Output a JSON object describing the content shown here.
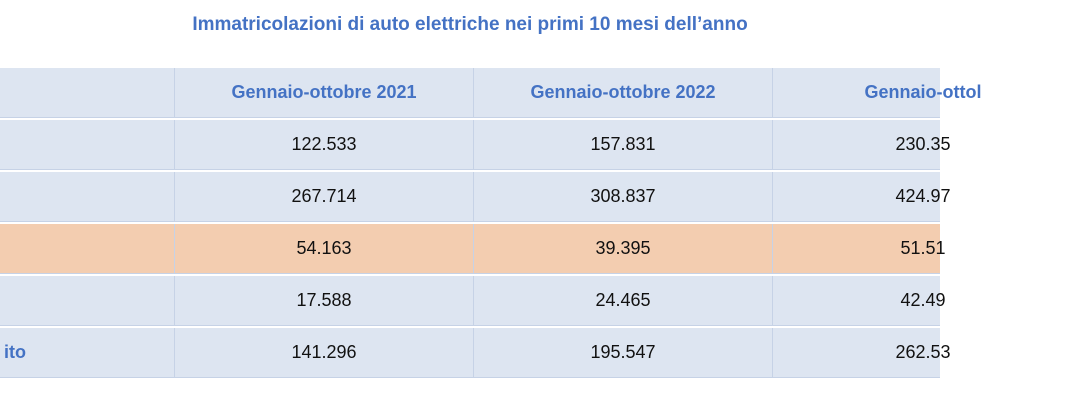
{
  "chart_data": {
    "type": "table",
    "title": "Immatricolazioni di auto elettriche nei primi 10 mesi dell’anno",
    "columns": [
      "",
      "Gennaio-ottobre 2021",
      "Gennaio-ottobre 2022",
      "Gennaio-ottol"
    ],
    "rows": [
      {
        "label": "",
        "values": [
          "122.533",
          "157.831",
          "230.35"
        ],
        "highlight": false
      },
      {
        "label": "",
        "values": [
          "267.714",
          "308.837",
          "424.97"
        ],
        "highlight": false
      },
      {
        "label": "",
        "values": [
          "54.163",
          "39.395",
          "51.51"
        ],
        "highlight": true
      },
      {
        "label": "",
        "values": [
          "17.588",
          "24.465",
          "42.49"
        ],
        "highlight": false
      },
      {
        "label": "ito",
        "values": [
          "141.296",
          "195.547",
          "262.53"
        ],
        "highlight": false
      }
    ],
    "colors": {
      "header_text": "#4472c4",
      "row_background": "#dde5f1",
      "highlight_background": "#f3cdb0"
    }
  }
}
